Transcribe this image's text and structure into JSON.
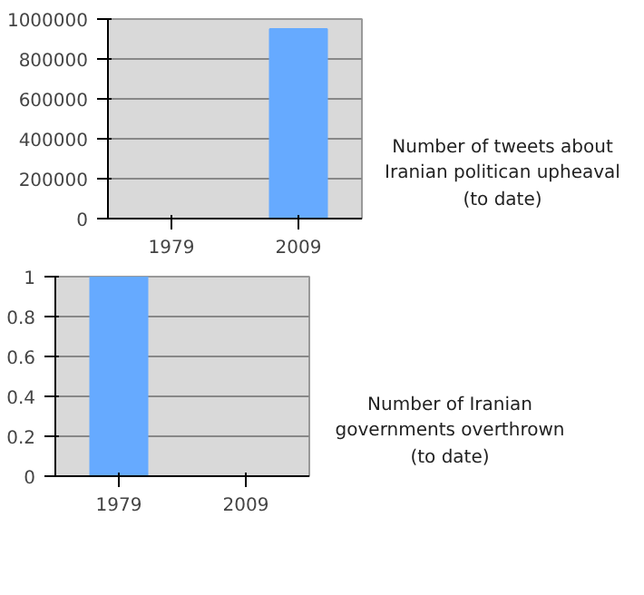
{
  "chart_data": [
    {
      "type": "bar",
      "categories": [
        "1979",
        "2009"
      ],
      "series": [
        {
          "name": "Number of tweets about Iranian politican upheaval (to date)",
          "color": "#66aaff",
          "values": [
            0,
            950000
          ]
        }
      ],
      "ylim": [
        0,
        1000000
      ],
      "yticks": [
        0,
        200000,
        400000,
        600000,
        800000,
        1000000
      ],
      "grid": "y"
    },
    {
      "type": "bar",
      "categories": [
        "1979",
        "2009"
      ],
      "series": [
        {
          "name": "Number of Iranian governments overthrown (to date)",
          "color": "#66aaff",
          "values": [
            1,
            0
          ]
        }
      ],
      "ylim": [
        0,
        1
      ],
      "yticks": [
        0,
        {
          "value": 0.2,
          "label": "0.2"
        },
        {
          "value": 0.4,
          "label": "0.4"
        },
        {
          "value": 0.6,
          "label": "0.6"
        },
        {
          "value": 0.8,
          "label": "0.8"
        },
        1
      ],
      "grid": "y"
    }
  ]
}
